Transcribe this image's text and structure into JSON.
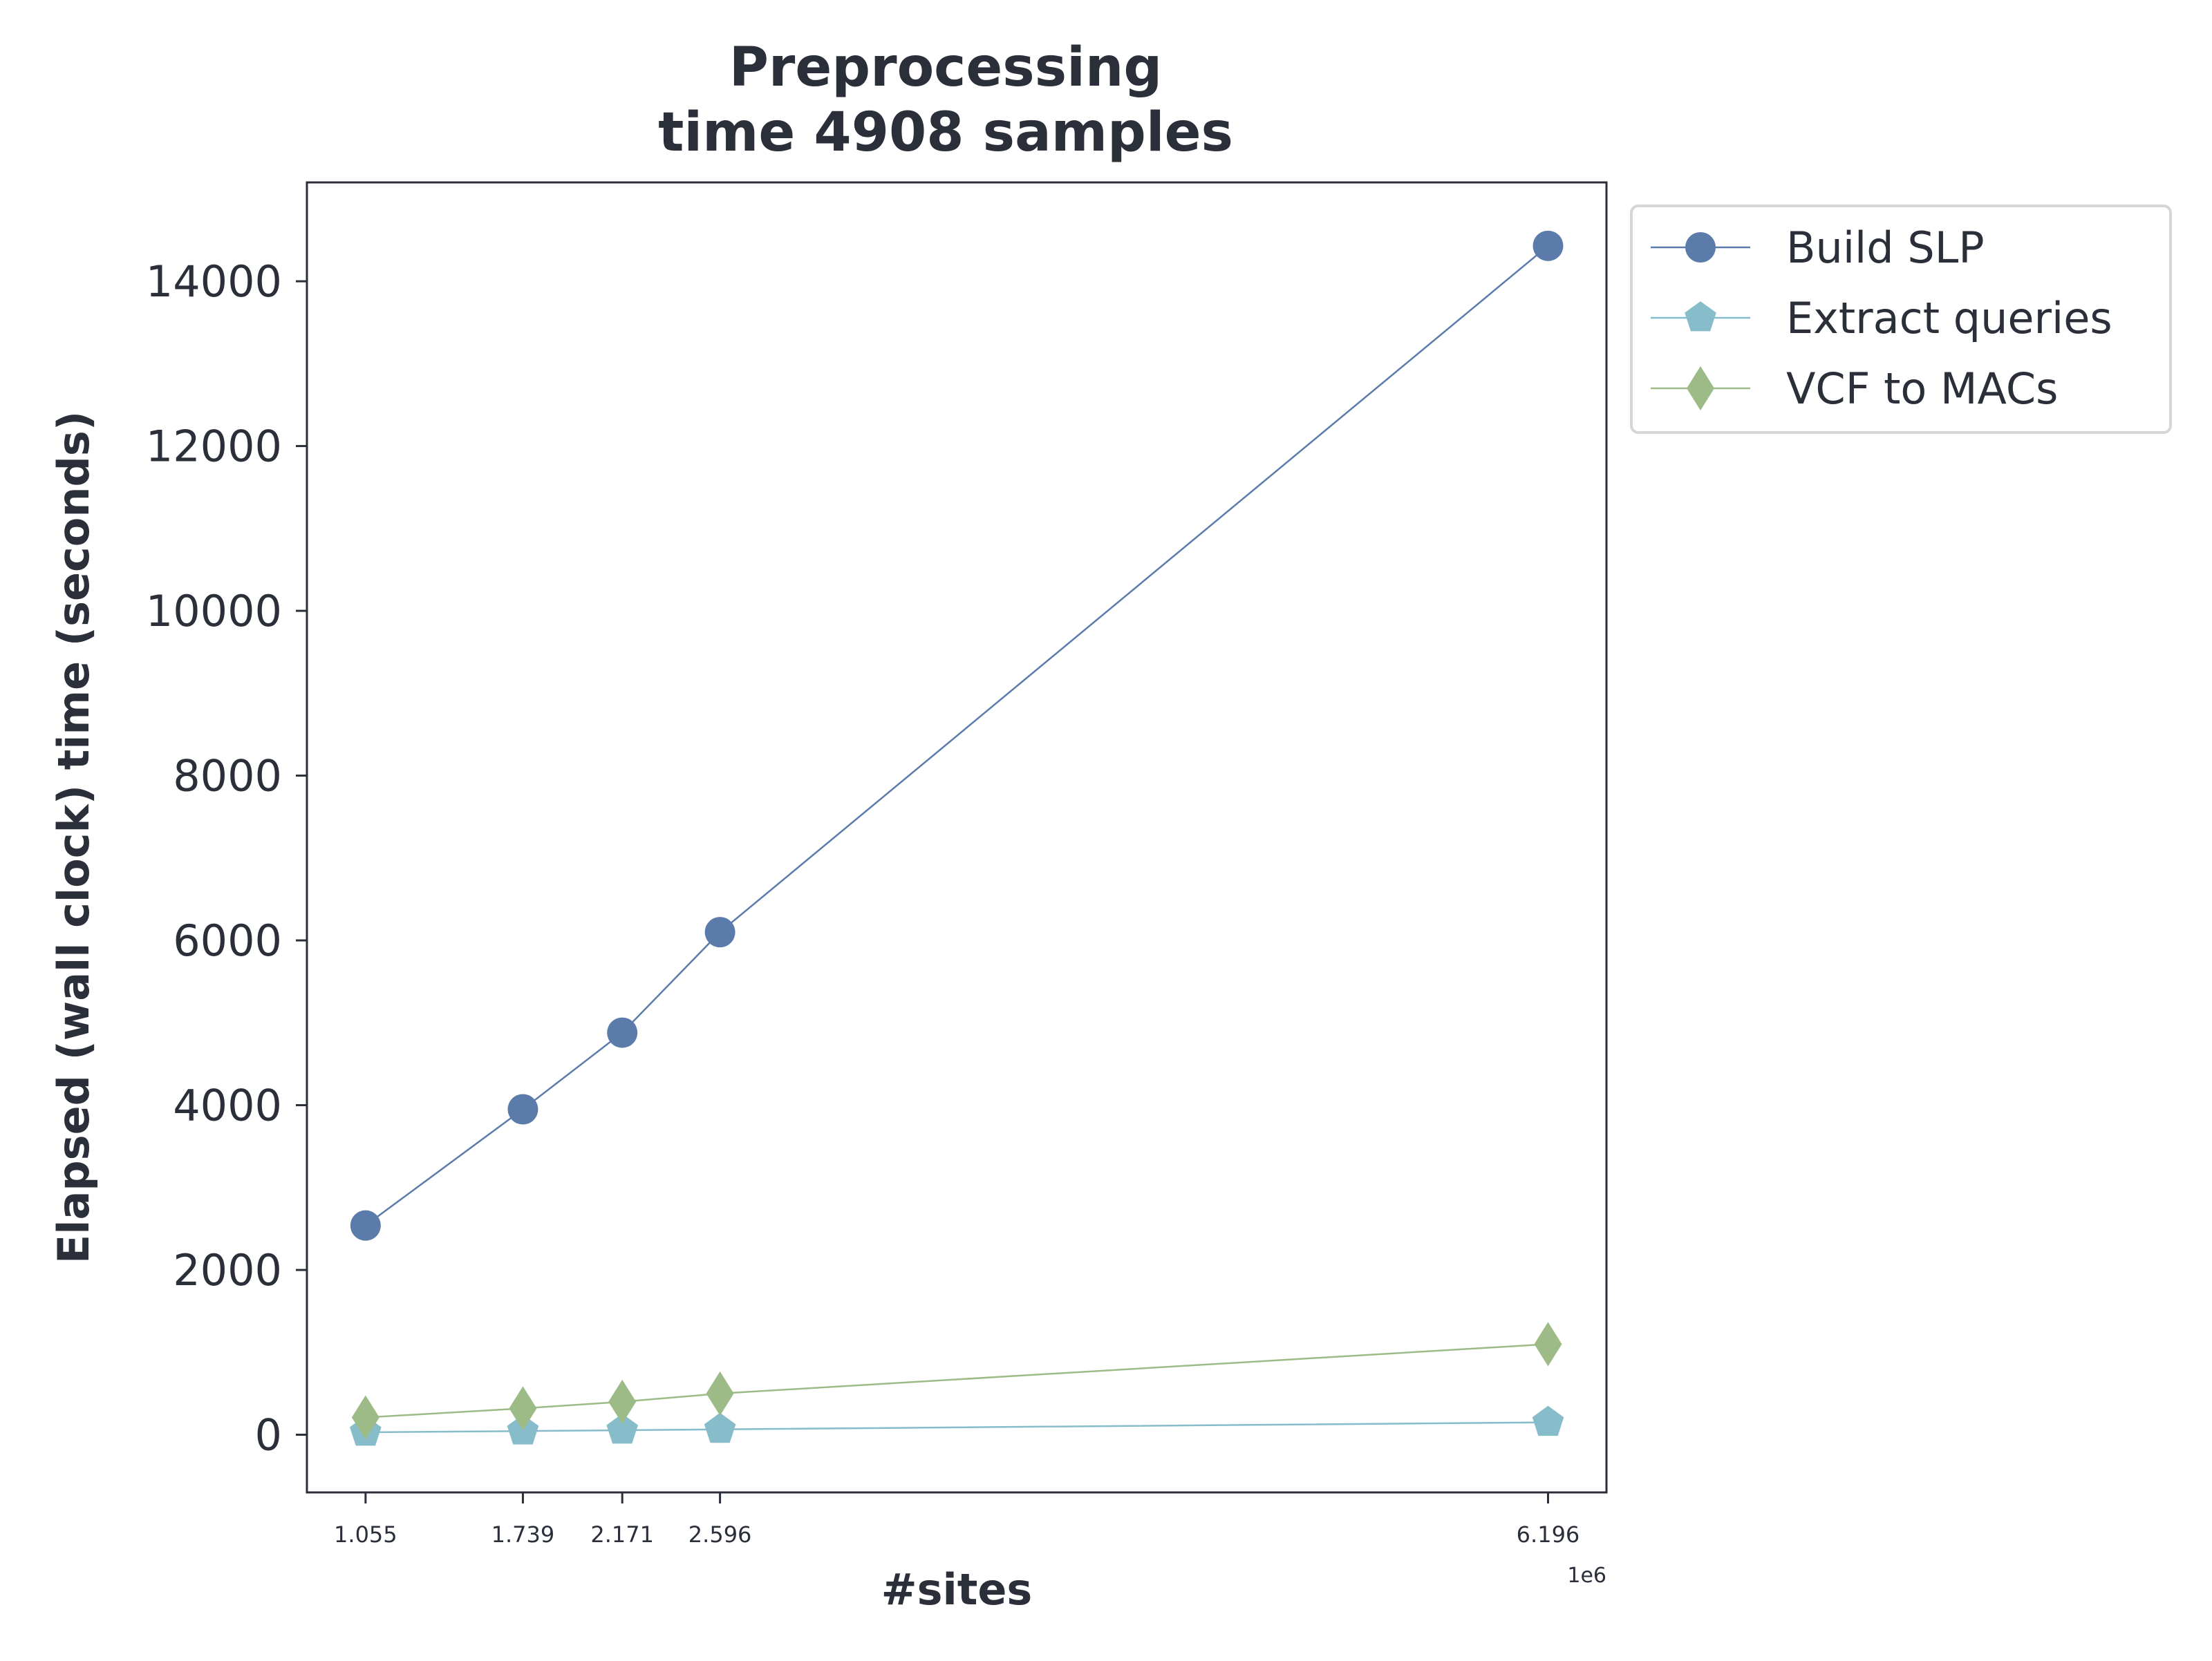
{
  "chart_data": {
    "type": "line",
    "title_lines": [
      "Preprocessing",
      "time 4908 samples"
    ],
    "xlabel": "#sites",
    "ylabel": "Elapsed (wall clock) time (seconds)",
    "x_offset_label": "1e6",
    "x": [
      1055000,
      1739000,
      2171000,
      2596000,
      6196000
    ],
    "x_tick_labels": [
      "1.055",
      "1.739",
      "2.171",
      "2.596",
      "6.196"
    ],
    "xlim": [
      800000,
      6450000
    ],
    "ylim": [
      -700,
      15200
    ],
    "y_ticks": [
      0,
      2000,
      4000,
      6000,
      8000,
      10000,
      12000,
      14000
    ],
    "legend_position": "outside-top-right",
    "grid": false,
    "series": [
      {
        "name": "Build SLP",
        "marker": "circle",
        "color": "#5b7baa",
        "values": [
          2540,
          3950,
          4880,
          6100,
          14430
        ]
      },
      {
        "name": "Extract queries",
        "marker": "pentagon",
        "color": "#87bdcb",
        "values": [
          30,
          45,
          55,
          65,
          150
        ]
      },
      {
        "name": "VCF to MACs",
        "marker": "diamond",
        "color": "#9cbb87",
        "values": [
          210,
          320,
          400,
          500,
          1100
        ]
      }
    ]
  }
}
